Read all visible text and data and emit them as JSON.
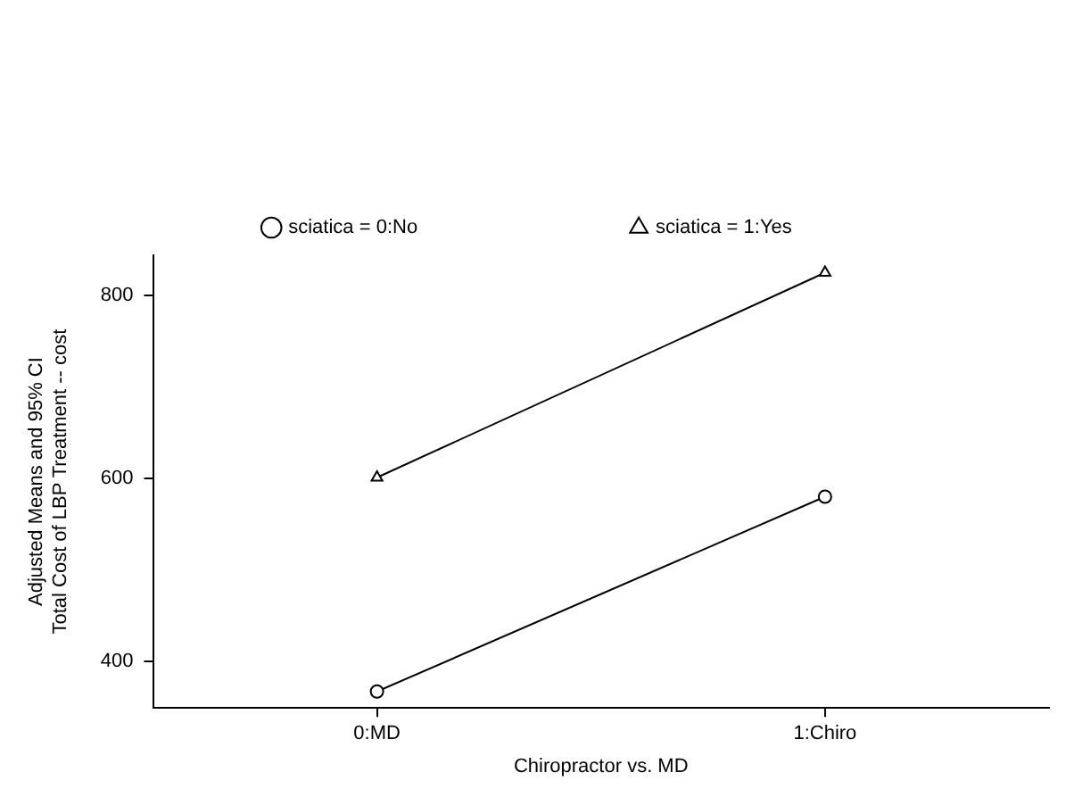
{
  "chart_data": {
    "type": "line",
    "xlabel": "Chiropractor vs. MD",
    "ylabel": "Adjusted Means and 95% CI\nTotal Cost of LBP Treatment -- cost",
    "categories": [
      "0:MD",
      "1:Chiro"
    ],
    "series": [
      {
        "name": "sciatica = 0:No",
        "color": "#000000",
        "values": [
          367,
          580
        ],
        "marker": "circle"
      },
      {
        "name": "sciatica = 1:Yes",
        "color": "#000000",
        "values": [
          601,
          825
        ],
        "marker": "triangle"
      }
    ],
    "ylim": [
      349,
      844
    ],
    "yticks": [
      400,
      600,
      800
    ],
    "grid": false,
    "legend": "top",
    "line_style": "solid"
  }
}
